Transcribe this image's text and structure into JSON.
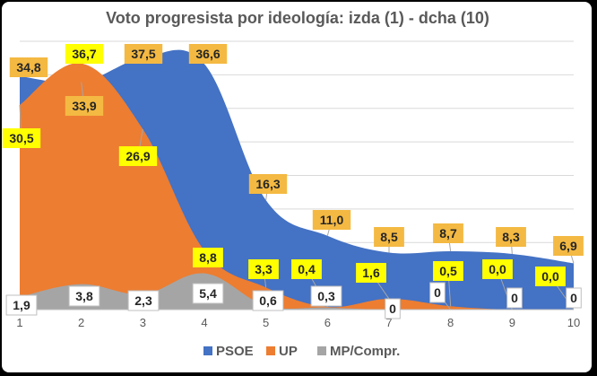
{
  "chart_data": {
    "type": "area",
    "title": "Voto progresista por ideología: izda (1) - dcha (10)",
    "categories": [
      "1",
      "2",
      "3",
      "4",
      "5",
      "6",
      "7",
      "8",
      "9",
      "10"
    ],
    "ylim": [
      0,
      40
    ],
    "grid": true,
    "legend_position": "bottom",
    "series": [
      {
        "name": "PSOE",
        "values": [
          34.8,
          33.9,
          37.5,
          36.6,
          16.3,
          11.0,
          8.5,
          8.7,
          8.3,
          6.9
        ],
        "labels": [
          "34,8",
          "33,9",
          "37,5",
          "36,6",
          "16,3",
          "11,0",
          "8,5",
          "8,7",
          "8,3",
          "6,9"
        ],
        "color": "#4472C4",
        "label_bg": "#F4B942"
      },
      {
        "name": "UP",
        "values": [
          30.5,
          36.7,
          26.9,
          8.8,
          3.3,
          0.4,
          1.6,
          0.5,
          0.0,
          0.0
        ],
        "labels": [
          "30,5",
          "36,7",
          "26,9",
          "8,8",
          "3,3",
          "0,4",
          "1,6",
          "0,5",
          "0,0",
          "0,0"
        ],
        "color": "#ED7D31",
        "label_bg": "#FFFF00"
      },
      {
        "name": "MP/Compr.",
        "values": [
          1.9,
          3.8,
          2.3,
          5.4,
          0.6,
          0.3,
          0,
          0,
          0,
          0
        ],
        "labels": [
          "1,9",
          "3,8",
          "2,3",
          "5,4",
          "0,6",
          "0,3",
          "0",
          "0",
          "0",
          "0"
        ],
        "color": "#A5A5A5",
        "label_bg": "#FFFFFF"
      }
    ]
  }
}
